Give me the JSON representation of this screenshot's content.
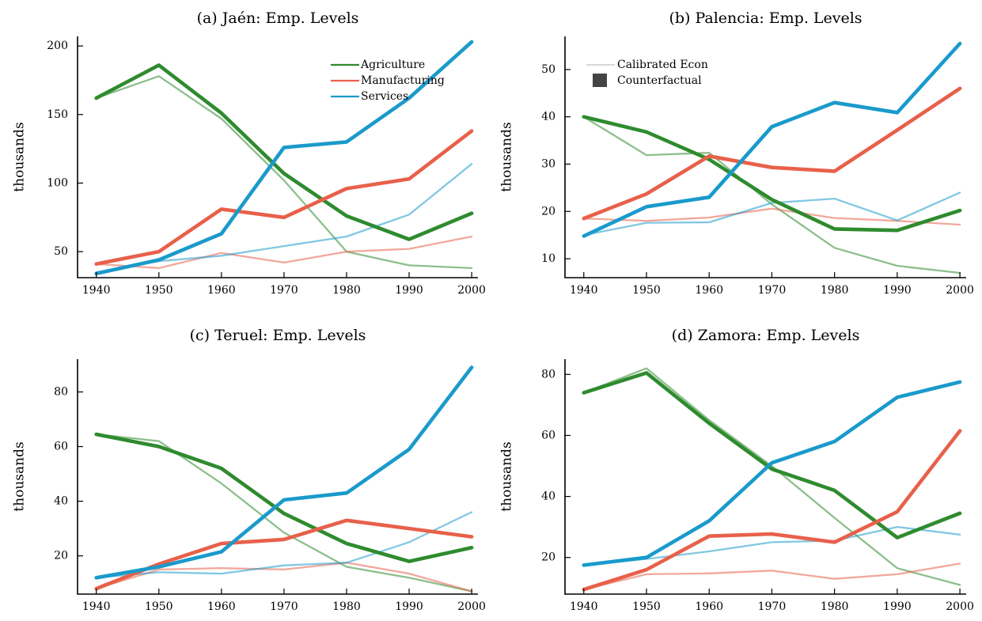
{
  "colors": {
    "Agriculture": "#2e8b2e",
    "Manufacturing": "#e8604a",
    "Services": "#1a9acb",
    "legend_calibrated_line": "#c8c8c8",
    "legend_counterfactual_patch": "#444444"
  },
  "legends": {
    "sectors": {
      "panel": 0,
      "placement": "top-right",
      "items": [
        "Agriculture",
        "Manufacturing",
        "Services"
      ]
    },
    "styles": {
      "panel": 1,
      "placement": "top-left",
      "calibrated": "Calibrated Econ",
      "counterfactual": "Counterfactual"
    }
  },
  "chart_data": [
    {
      "type": "line",
      "title": "(a) Jaén: Emp. Levels",
      "xlabel": "",
      "ylabel": "thousands",
      "x": [
        1940,
        1950,
        1960,
        1970,
        1980,
        1990,
        2000
      ],
      "xlim": [
        1937,
        2001
      ],
      "ylim": [
        31,
        207
      ],
      "yticks": [
        50,
        100,
        150,
        200
      ],
      "series": [
        {
          "name": "Agriculture",
          "style": "Calibrated Econ",
          "values": [
            162,
            178,
            147,
            102,
            50,
            40,
            38
          ]
        },
        {
          "name": "Manufacturing",
          "style": "Calibrated Econ",
          "values": [
            41,
            38,
            49,
            42,
            50,
            52,
            61
          ]
        },
        {
          "name": "Services",
          "style": "Calibrated Econ",
          "values": [
            35,
            43,
            47,
            54,
            61,
            77,
            114
          ]
        },
        {
          "name": "Agriculture",
          "style": "Counterfactual",
          "values": [
            162,
            186,
            151,
            107,
            76,
            59,
            78
          ]
        },
        {
          "name": "Manufacturing",
          "style": "Counterfactual",
          "values": [
            41,
            50,
            81,
            75,
            96,
            103,
            138
          ]
        },
        {
          "name": "Services",
          "style": "Counterfactual",
          "values": [
            34,
            44,
            63,
            126,
            130,
            162,
            203
          ]
        }
      ]
    },
    {
      "type": "line",
      "title": "(b) Palencia: Emp. Levels",
      "xlabel": "",
      "ylabel": "thousands",
      "x": [
        1940,
        1950,
        1960,
        1970,
        1980,
        1990,
        2000
      ],
      "xlim": [
        1937,
        2001
      ],
      "ylim": [
        6,
        57
      ],
      "yticks": [
        10,
        20,
        30,
        40,
        50
      ],
      "series": [
        {
          "name": "Agriculture",
          "style": "Calibrated Econ",
          "values": [
            40,
            31.9,
            32.4,
            21.5,
            12.3,
            8.5,
            7
          ]
        },
        {
          "name": "Manufacturing",
          "style": "Calibrated Econ",
          "values": [
            18.5,
            18,
            18.7,
            20.6,
            18.6,
            18,
            17.2
          ]
        },
        {
          "name": "Services",
          "style": "Calibrated Econ",
          "values": [
            15,
            17.6,
            17.7,
            21.8,
            22.7,
            18.1,
            24
          ]
        },
        {
          "name": "Agriculture",
          "style": "Counterfactual",
          "values": [
            40,
            36.8,
            31,
            22.5,
            16.3,
            16,
            20.2
          ]
        },
        {
          "name": "Manufacturing",
          "style": "Counterfactual",
          "values": [
            18.5,
            23.7,
            31.7,
            29.3,
            28.5,
            37.2,
            46
          ]
        },
        {
          "name": "Services",
          "style": "Counterfactual",
          "values": [
            14.8,
            21,
            23,
            37.9,
            43,
            40.9,
            55.5
          ]
        }
      ]
    },
    {
      "type": "line",
      "title": "(c) Teruel: Emp. Levels",
      "xlabel": "",
      "ylabel": "thousands",
      "x": [
        1940,
        1950,
        1960,
        1970,
        1980,
        1990,
        2000
      ],
      "xlim": [
        1937,
        2001
      ],
      "ylim": [
        6,
        92
      ],
      "yticks": [
        20,
        40,
        60,
        80
      ],
      "series": [
        {
          "name": "Agriculture",
          "style": "Calibrated Econ",
          "values": [
            64.5,
            62,
            46.5,
            28.5,
            16,
            12,
            7
          ]
        },
        {
          "name": "Manufacturing",
          "style": "Calibrated Econ",
          "values": [
            8,
            15,
            15.5,
            15,
            17.5,
            13.5,
            7
          ]
        },
        {
          "name": "Services",
          "style": "Calibrated Econ",
          "values": [
            12,
            14,
            13.5,
            16.5,
            17.5,
            25,
            36
          ]
        },
        {
          "name": "Agriculture",
          "style": "Counterfactual",
          "values": [
            64.5,
            60,
            52,
            35.5,
            24.5,
            18,
            23
          ]
        },
        {
          "name": "Manufacturing",
          "style": "Counterfactual",
          "values": [
            8,
            17,
            24.5,
            26,
            33,
            30,
            27
          ]
        },
        {
          "name": "Services",
          "style": "Counterfactual",
          "values": [
            12,
            16,
            21.5,
            40.5,
            43,
            59,
            89
          ]
        }
      ]
    },
    {
      "type": "line",
      "title": "(d) Zamora: Emp. Levels",
      "xlabel": "",
      "ylabel": "thousands",
      "x": [
        1940,
        1950,
        1960,
        1970,
        1980,
        1990,
        2000
      ],
      "xlim": [
        1937,
        2001
      ],
      "ylim": [
        8,
        85
      ],
      "yticks": [
        20,
        40,
        60,
        80
      ],
      "series": [
        {
          "name": "Agriculture",
          "style": "Calibrated Econ",
          "values": [
            74,
            82,
            65,
            50,
            33,
            16.5,
            11
          ]
        },
        {
          "name": "Manufacturing",
          "style": "Calibrated Econ",
          "values": [
            9.5,
            14.5,
            14.8,
            15.7,
            13,
            14.5,
            18
          ]
        },
        {
          "name": "Services",
          "style": "Calibrated Econ",
          "values": [
            17.5,
            19.5,
            22,
            25,
            25.5,
            30,
            27.5
          ]
        },
        {
          "name": "Agriculture",
          "style": "Counterfactual",
          "values": [
            74,
            80.5,
            64,
            49,
            42,
            26.5,
            34.5
          ]
        },
        {
          "name": "Manufacturing",
          "style": "Counterfactual",
          "values": [
            9.5,
            16,
            27,
            27.7,
            25,
            35,
            61.5
          ]
        },
        {
          "name": "Services",
          "style": "Counterfactual",
          "values": [
            17.5,
            20,
            32,
            51,
            58,
            72.5,
            77.5
          ]
        }
      ]
    }
  ]
}
